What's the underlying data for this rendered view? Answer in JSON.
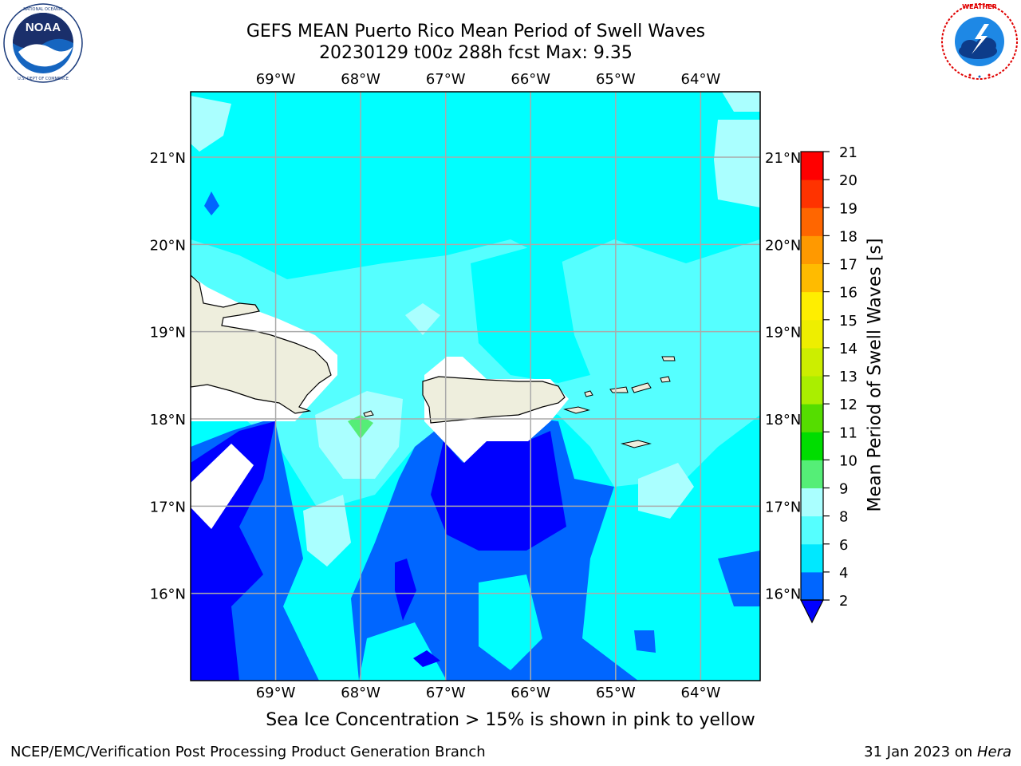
{
  "header": {
    "title_line1": "GEFS MEAN Puerto Rico Mean Period of Swell Waves",
    "title_line2": "20230129 t00z 288h fcst   Max: 9.35"
  },
  "logos": {
    "left": {
      "name": "noaa-logo",
      "text": "NOAA",
      "ring_text": "NATIONAL OCEANIC AND ATMOSPHERIC ADMINISTRATION · U.S. DEPARTMENT OF COMMERCE"
    },
    "right": {
      "name": "nws-logo",
      "ring_text": "NATIONAL WEATHER SERVICE"
    }
  },
  "map": {
    "lon_labels": [
      "69°W",
      "68°W",
      "67°W",
      "66°W",
      "65°W",
      "64°W"
    ],
    "lat_labels": [
      "21°N",
      "20°N",
      "19°N",
      "18°N",
      "17°N",
      "16°N"
    ],
    "extent": {
      "lon": [
        -70.0,
        -63.3
      ],
      "lat": [
        15.0,
        21.75
      ]
    },
    "ocean_color": "#00ffff",
    "land_color": "#eeeedd"
  },
  "colorbar": {
    "label": "Mean Period of Swell Waves [s]",
    "ticks": [
      "21",
      "20",
      "19",
      "18",
      "17",
      "16",
      "15",
      "14",
      "13",
      "12",
      "11",
      "10",
      "9",
      "8",
      "6",
      "4",
      "2"
    ],
    "bands": [
      {
        "from": 2,
        "to": 4,
        "color": "#0066ff"
      },
      {
        "from": 4,
        "to": 6,
        "color": "#00e8ff"
      },
      {
        "from": 6,
        "to": 8,
        "color": "#55ffff"
      },
      {
        "from": 8,
        "to": 9,
        "color": "#aaffff"
      },
      {
        "from": 9,
        "to": 10,
        "color": "#55ee77"
      },
      {
        "from": 10,
        "to": 11,
        "color": "#00dd00"
      },
      {
        "from": 11,
        "to": 12,
        "color": "#55dd00"
      },
      {
        "from": 12,
        "to": 13,
        "color": "#aaee00"
      },
      {
        "from": 13,
        "to": 14,
        "color": "#ccee00"
      },
      {
        "from": 14,
        "to": 15,
        "color": "#eeee00"
      },
      {
        "from": 15,
        "to": 16,
        "color": "#ffee00"
      },
      {
        "from": 16,
        "to": 17,
        "color": "#ffbb00"
      },
      {
        "from": 17,
        "to": 18,
        "color": "#ff9900"
      },
      {
        "from": 18,
        "to": 19,
        "color": "#ff6600"
      },
      {
        "from": 19,
        "to": 20,
        "color": "#ff3300"
      },
      {
        "from": 20,
        "to": 21,
        "color": "#ff0000"
      }
    ],
    "under_color": "#0000ff"
  },
  "caption": "Sea Ice Concentration > 15% is shown in pink to yellow",
  "footer": {
    "left": "NCEP/EMC/Verification Post Processing Product Generation Branch",
    "right_date": "31 Jan 2023 on ",
    "right_machine": "Hera"
  }
}
